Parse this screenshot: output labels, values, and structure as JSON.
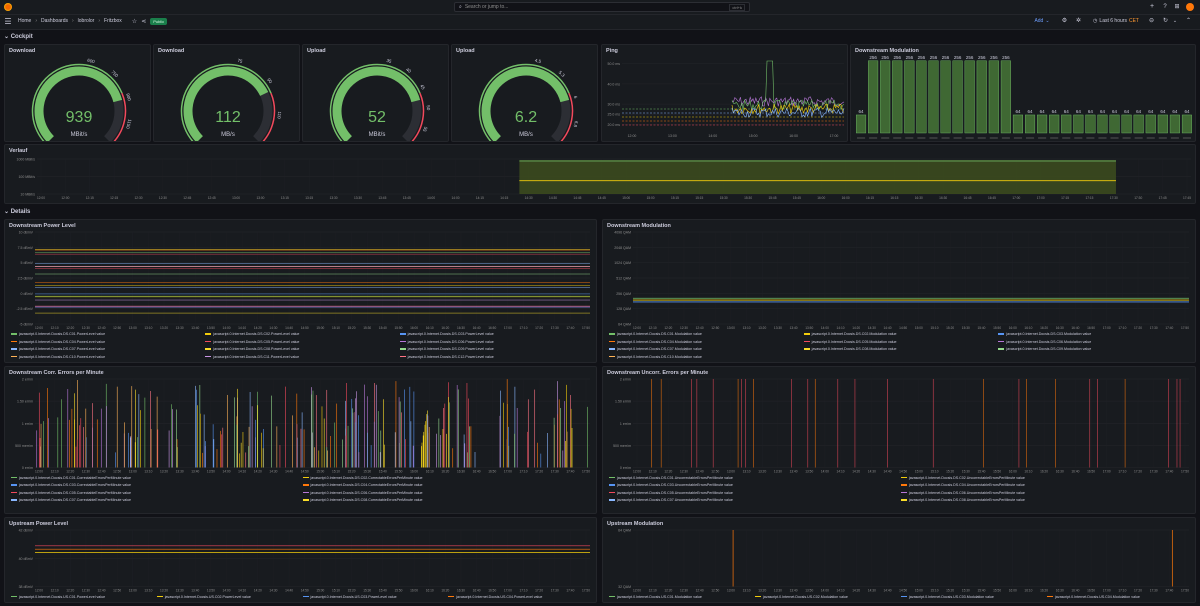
{
  "topbar": {
    "breadcrumb": [
      "Home",
      "Dashboards",
      "lobrolor",
      "Fritzbox"
    ],
    "public_badge": "Public",
    "search_placeholder": "Search or jump to...",
    "search_shortcut": "ctrl+k",
    "add_label": "Add",
    "time_range": "Last 6 hours",
    "timezone": "CET"
  },
  "rows": {
    "cockpit": "Cockpit",
    "details": "Details"
  },
  "gauges": [
    {
      "title": "Download",
      "value": "939",
      "unit": "MBit/s",
      "fraction": 0.78,
      "min": "0",
      "ticks": [
        "600",
        "750",
        "900",
        "1150",
        "1200"
      ]
    },
    {
      "title": "Download",
      "value": "112",
      "unit": "MB/s",
      "fraction": 0.74,
      "min": "0",
      "ticks": [
        "75",
        "90",
        "110",
        "150"
      ]
    },
    {
      "title": "Upload",
      "value": "52",
      "unit": "MBit/s",
      "fraction": 0.78,
      "min": "0",
      "ticks": [
        "35",
        "40",
        "45",
        "50",
        "55",
        "60"
      ]
    },
    {
      "title": "Upload",
      "value": "6.2",
      "unit": "MB/s",
      "fraction": 0.78,
      "min": "0",
      "ticks": [
        "4.5",
        "5.3",
        "6",
        "6.8",
        "7.5"
      ]
    }
  ],
  "ping": {
    "title": "Ping",
    "yticks": [
      "50.0 ms",
      "40.0 ms",
      "30.0 ms",
      "25.0 ms",
      "20.0 ms"
    ],
    "xticks": [
      "12:00",
      "13:00",
      "14:00",
      "15:00",
      "16:00",
      "17:00"
    ]
  },
  "ds_mod_top": {
    "title": "Downstream Modulation",
    "bar_values": [
      64,
      256,
      256,
      256,
      256,
      256,
      256,
      256,
      256,
      256,
      256,
      256,
      256,
      64,
      64,
      64,
      64,
      64,
      64,
      64,
      64,
      64,
      64,
      64,
      64,
      64,
      64,
      64
    ],
    "bar_labels": [
      "256",
      "64"
    ]
  },
  "verlauf": {
    "title": "Verlauf",
    "yticks": [
      "1000 MBit/s",
      "100 MBit/s",
      "10 MBit/s"
    ],
    "xticks": [
      "12:00",
      "12:15",
      "12:30",
      "12:45",
      "13:00",
      "13:15",
      "13:30",
      "13:45",
      "14:00",
      "14:15",
      "14:30",
      "14:45",
      "15:00",
      "15:15",
      "15:30",
      "15:45",
      "16:00",
      "16:15",
      "16:30",
      "16:45",
      "17:00",
      "17:15",
      "17:30",
      "17:45"
    ]
  },
  "details": [
    {
      "title": "Downstream Power Level",
      "yticks": [
        "10 dBmV",
        "7.5 dBmV",
        "5 dBmV",
        "2.5 dBmV",
        "0 dBmV",
        "-2.5 dBmV",
        "-5 dBmV"
      ],
      "legend": [
        "javascript.0.Internet.Docsis.DS.C01.PowerLevel value",
        "javascript.0.Internet.Docsis.DS.C02.PowerLevel value",
        "javascript.0.Internet.Docsis.DS.C03.PowerLevel value",
        "javascript.0.Internet.Docsis.DS.C04.PowerLevel value",
        "javascript.0.Internet.Docsis.DS.C05.PowerLevel value",
        "javascript.0.Internet.Docsis.DS.C06.PowerLevel value",
        "javascript.0.Internet.Docsis.DS.C07.PowerLevel value",
        "javascript.0.Internet.Docsis.DS.C08.PowerLevel value",
        "javascript.0.Internet.Docsis.DS.C09.PowerLevel value",
        "javascript.0.Internet.Docsis.DS.C10.PowerLevel value",
        "javascript.0.Internet.Docsis.DS.C11.PowerLevel value",
        "javascript.0.Internet.Docsis.DS.C12.PowerLevel value"
      ]
    },
    {
      "title": "Downstream Modulation",
      "yticks": [
        "4096 QAM",
        "2048 QAM",
        "1024 QAM",
        "512 QAM",
        "256 QAM",
        "128 QAM",
        "64 QAM"
      ],
      "legend": [
        "javascript.0.Internet.Docsis.DS.C01.Modulation value",
        "javascript.0.Internet.Docsis.DS.C02.Modulation value",
        "javascript.0.Internet.Docsis.DS.C03.Modulation value",
        "javascript.0.Internet.Docsis.DS.C04.Modulation value",
        "javascript.0.Internet.Docsis.DS.C05.Modulation value",
        "javascript.0.Internet.Docsis.DS.C06.Modulation value",
        "javascript.0.Internet.Docsis.DS.C07.Modulation value",
        "javascript.0.Internet.Docsis.DS.C08.Modulation value",
        "javascript.0.Internet.Docsis.DS.C09.Modulation value",
        "javascript.0.Internet.Docsis.DS.C10.Modulation value"
      ]
    },
    {
      "title": "Downstream Corr. Errors per Minute",
      "yticks": [
        "2 err/m",
        "1.50 err/m",
        "1 err/m",
        "500 merr/m",
        "0 err/m"
      ],
      "legend": [
        "javascript.0.Internet.Docsis.DS.C01.CorrectableErrorsPerMinute value",
        "javascript.0.Internet.Docsis.DS.C02.CorrectableErrorsPerMinute value",
        "javascript.0.Internet.Docsis.DS.C03.CorrectableErrorsPerMinute value",
        "javascript.0.Internet.Docsis.DS.C04.CorrectableErrorsPerMinute value",
        "javascript.0.Internet.Docsis.DS.C05.CorrectableErrorsPerMinute value",
        "javascript.0.Internet.Docsis.DS.C06.CorrectableErrorsPerMinute value",
        "javascript.0.Internet.Docsis.DS.C07.CorrectableErrorsPerMinute value",
        "javascript.0.Internet.Docsis.DS.C08.CorrectableErrorsPerMinute value"
      ]
    },
    {
      "title": "Downstream Uncorr. Errors per Minute",
      "yticks": [
        "2 err/m",
        "1.50 err/m",
        "1 err/m",
        "500 merr/m",
        "0 err/m"
      ],
      "legend": [
        "javascript.0.Internet.Docsis.DS.C01.UncorrectableErrorsPerMinute value",
        "javascript.0.Internet.Docsis.DS.C02.UncorrectableErrorsPerMinute value",
        "javascript.0.Internet.Docsis.DS.C03.UncorrectableErrorsPerMinute value",
        "javascript.0.Internet.Docsis.DS.C04.UncorrectableErrorsPerMinute value",
        "javascript.0.Internet.Docsis.DS.C05.UncorrectableErrorsPerMinute value",
        "javascript.0.Internet.Docsis.DS.C06.UncorrectableErrorsPerMinute value",
        "javascript.0.Internet.Docsis.DS.C07.UncorrectableErrorsPerMinute value",
        "javascript.0.Internet.Docsis.DS.C08.UncorrectableErrorsPerMinute value"
      ]
    },
    {
      "title": "Upstream Power Level",
      "yticks": [
        "42 dBmV",
        "40 dBmV",
        "38 dBmV"
      ],
      "legend": [
        "javascript.0.Internet.Docsis.US.C01.PowerLevel value",
        "javascript.0.Internet.Docsis.US.C02.PowerLevel value",
        "javascript.0.Internet.Docsis.US.C03.PowerLevel value",
        "javascript.0.Internet.Docsis.US.C04.PowerLevel value"
      ]
    },
    {
      "title": "Upstream Modulation",
      "yticks": [
        "64 QAM",
        "32 QAM"
      ],
      "legend": [
        "javascript.0.Internet.Docsis.US.C01.Modulation value",
        "javascript.0.Internet.Docsis.US.C02.Modulation value",
        "javascript.0.Internet.Docsis.US.C03.Modulation value",
        "javascript.0.Internet.Docsis.US.C04.Modulation value"
      ]
    }
  ],
  "detail_xticks": [
    "12:00",
    "12:10",
    "12:20",
    "12:30",
    "12:40",
    "12:50",
    "13:00",
    "13:10",
    "13:20",
    "13:30",
    "13:40",
    "13:50",
    "14:00",
    "14:10",
    "14:20",
    "14:30",
    "14:40",
    "14:50",
    "15:00",
    "15:10",
    "15:20",
    "15:30",
    "15:40",
    "15:50",
    "16:00",
    "16:10",
    "16:20",
    "16:30",
    "16:40",
    "16:50",
    "17:00",
    "17:10",
    "17:20",
    "17:30",
    "17:40",
    "17:50"
  ],
  "series_colors": [
    "#73bf69",
    "#f2cc0c",
    "#5794f2",
    "#ff780a",
    "#f2495c",
    "#b877d9",
    "#8ab8ff",
    "#fade2a",
    "#96d98d",
    "#ffb357",
    "#ca95e5",
    "#ff7383"
  ],
  "icons": {
    "logo": "grafana-logo-icon",
    "menu": "hamburger-menu-icon",
    "star": "star-icon",
    "share": "share-icon"
  }
}
